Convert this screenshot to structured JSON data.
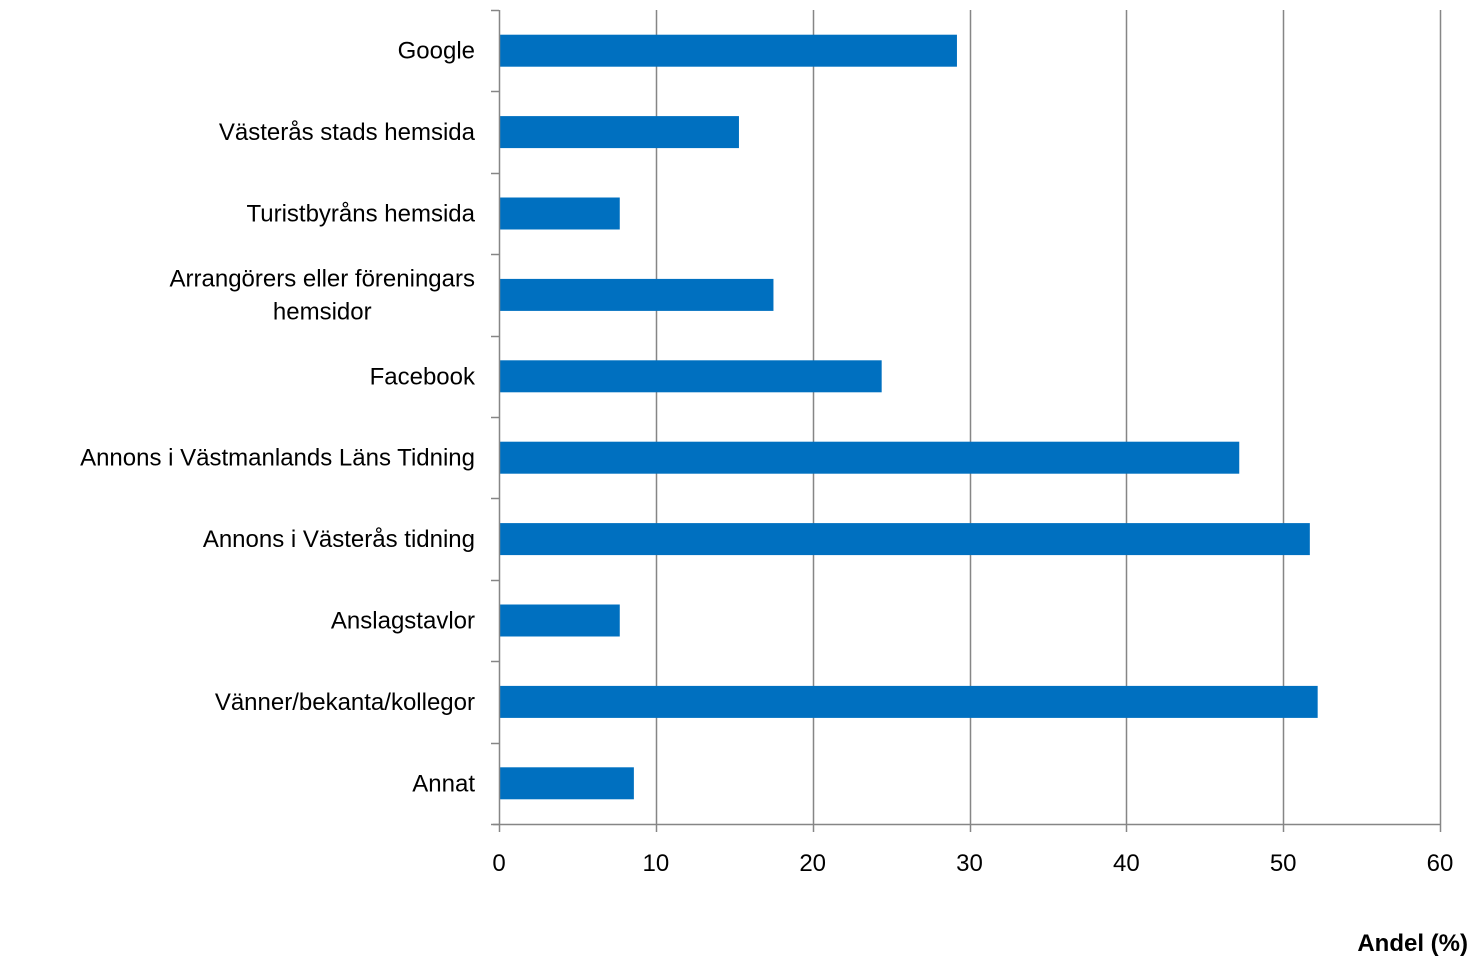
{
  "chart_data": {
    "type": "bar",
    "orientation": "horizontal",
    "categories": [
      "Google",
      "Västerås stads hemsida",
      "Turistbyråns hemsida",
      "Arrangörers eller föreningars hemsidor",
      "Facebook",
      "Annons i Västmanlands Läns Tidning",
      "Annons i Västerås tidning",
      "Anslagstavlor",
      "Vänner/bekanta/kollegor",
      "Annat"
    ],
    "category_lines": [
      [
        "Google"
      ],
      [
        "Västerås stads hemsida"
      ],
      [
        "Turistbyråns hemsida"
      ],
      [
        "Arrangörers eller föreningars",
        "hemsidor"
      ],
      [
        "Facebook"
      ],
      [
        "Annons i Västmanlands Läns Tidning"
      ],
      [
        "Annons i Västerås tidning"
      ],
      [
        "Anslagstavlor"
      ],
      [
        "Vänner/bekanta/kollegor"
      ],
      [
        "Annat"
      ]
    ],
    "values": [
      29.2,
      15.3,
      7.7,
      17.5,
      24.4,
      47.2,
      51.7,
      7.7,
      52.2,
      8.6
    ],
    "xlabel": "Andel (%)",
    "xlim": [
      0,
      60
    ],
    "xticks": [
      0,
      10,
      20,
      30,
      40,
      50,
      60
    ],
    "xtick_labels": [
      "0",
      "10",
      "20",
      "30",
      "40",
      "50",
      "60"
    ],
    "grid": "vertical",
    "legend": "none",
    "colors": {
      "bar": "#0070c0",
      "grid": "#868686",
      "axis": "#868686",
      "text": "#000000"
    }
  }
}
